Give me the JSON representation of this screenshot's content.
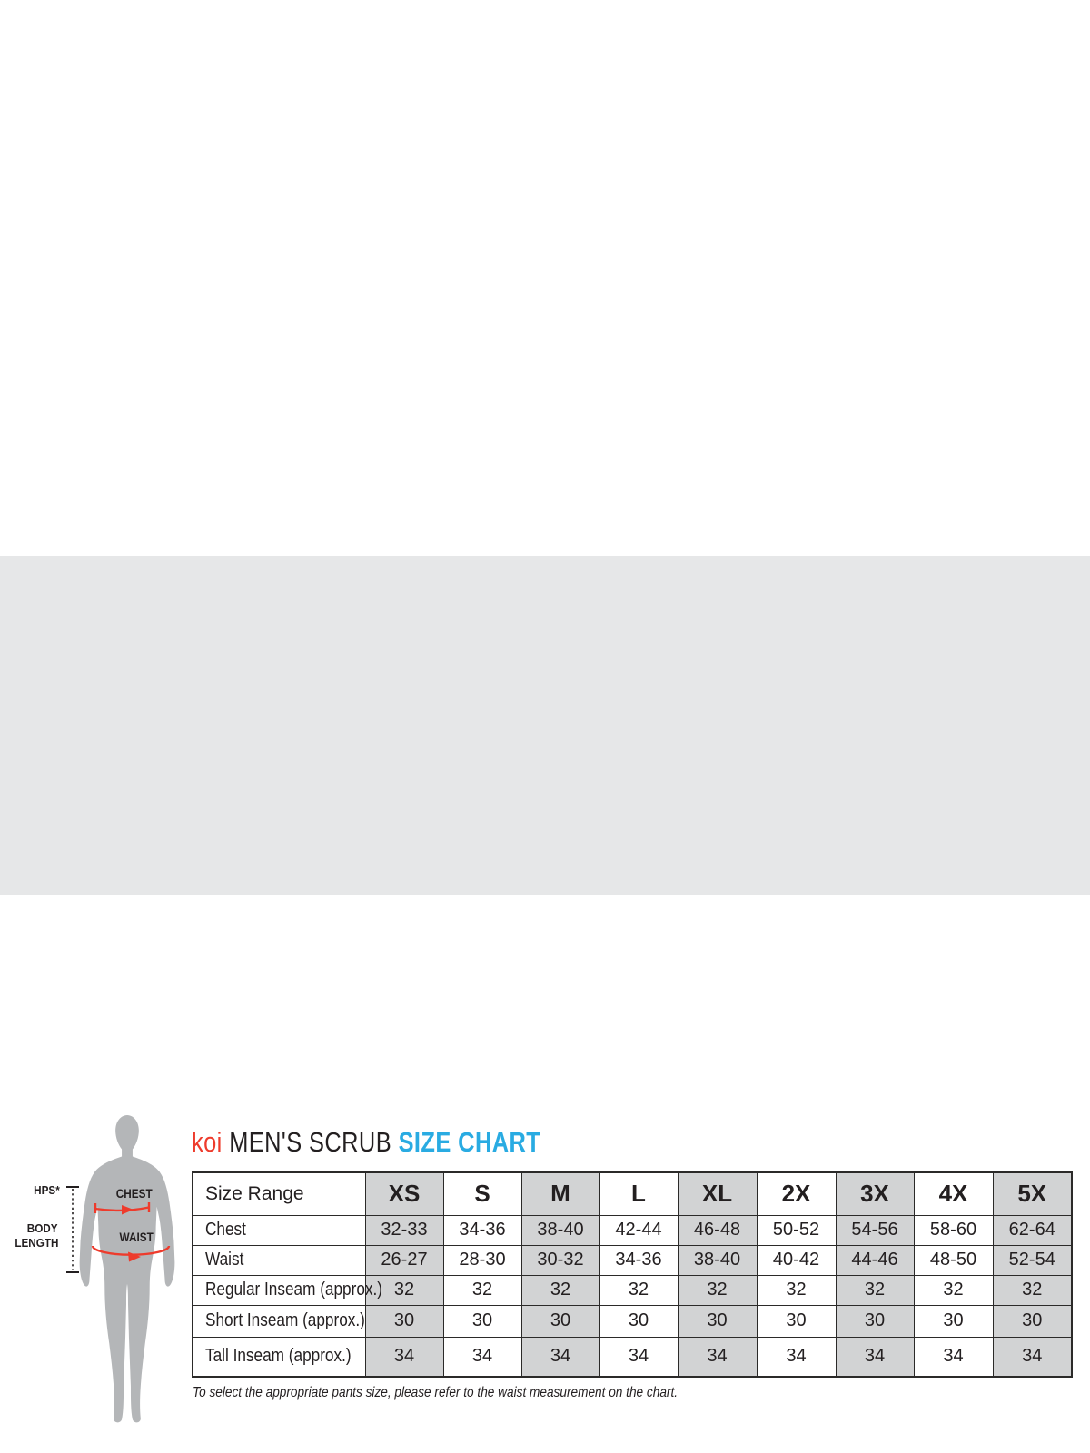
{
  "title": {
    "brand": "koi",
    "product": "MEN'S SCRUB",
    "suffix": "SIZE CHART"
  },
  "colors": {
    "brand_red": "#ee3b2c",
    "accent_cyan": "#29abe2",
    "band_bg": "#e6e7e8",
    "cell_shade": "#d2d3d4",
    "ink": "#231f20",
    "silhouette": "#b4b6b8"
  },
  "figure": {
    "hps_label": "HPS*",
    "body_length_line1": "BODY",
    "body_length_line2": "LENGTH",
    "chest_label": "CHEST",
    "waist_label": "WAIST"
  },
  "chart_data": {
    "type": "table",
    "title": "koi MEN'S SCRUB SIZE CHART",
    "columns": [
      "Size Range",
      "XS",
      "S",
      "M",
      "L",
      "XL",
      "2X",
      "3X",
      "4X",
      "5X"
    ],
    "rows": [
      {
        "label": "Chest",
        "values": [
          "32-33",
          "34-36",
          "38-40",
          "42-44",
          "46-48",
          "50-52",
          "54-56",
          "58-60",
          "62-64"
        ]
      },
      {
        "label": "Waist",
        "values": [
          "26-27",
          "28-30",
          "30-32",
          "34-36",
          "38-40",
          "40-42",
          "44-46",
          "48-50",
          "52-54"
        ]
      },
      {
        "label": "Regular Inseam (approx.)",
        "values": [
          "32",
          "32",
          "32",
          "32",
          "32",
          "32",
          "32",
          "32",
          "32"
        ]
      },
      {
        "label": "Short Inseam (approx.)",
        "values": [
          "30",
          "30",
          "30",
          "30",
          "30",
          "30",
          "30",
          "30",
          "30"
        ]
      },
      {
        "label": "Tall Inseam (approx.)",
        "values": [
          "34",
          "34",
          "34",
          "34",
          "34",
          "34",
          "34",
          "34",
          "34"
        ]
      }
    ],
    "shaded_columns": [
      "XS",
      "M",
      "XL",
      "3X",
      "5X"
    ]
  },
  "footnote": "To select the appropriate pants size, please refer to the waist measurement on the chart."
}
